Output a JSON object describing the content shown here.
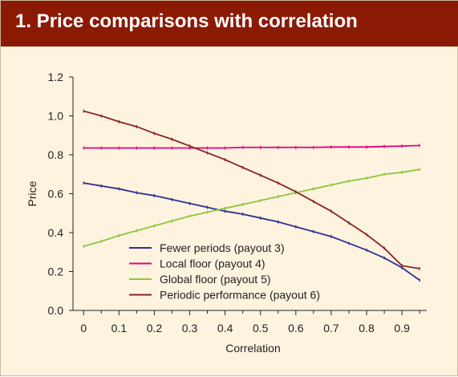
{
  "title": "1. Price comparisons with correlation",
  "colors": {
    "title_bar": "#8b1a05",
    "background": "#fdf3df"
  },
  "chart_data": {
    "type": "line",
    "xlabel": "Correlation",
    "ylabel": "Price",
    "xlim": [
      -0.03,
      0.97
    ],
    "ylim": [
      0,
      1.2
    ],
    "x_ticks": [
      0,
      0.1,
      0.2,
      0.3,
      0.4,
      0.5,
      0.6,
      0.7,
      0.8,
      0.9
    ],
    "x_tick_labels": [
      "0",
      "0.1",
      "0.2",
      "0.3",
      "0.4",
      "0.5",
      "0.6",
      "0.7",
      "0.8",
      "0.9"
    ],
    "y_ticks": [
      0,
      0.2,
      0.4,
      0.6,
      0.8,
      1.0,
      1.2
    ],
    "y_tick_labels": [
      "0.0",
      "0.2",
      "0.4",
      "0.6",
      "0.8",
      "1.0",
      "1.2"
    ],
    "grid": false,
    "legend_position": "bottom-center",
    "x": [
      0,
      0.05,
      0.1,
      0.15,
      0.2,
      0.25,
      0.3,
      0.35,
      0.4,
      0.45,
      0.5,
      0.55,
      0.6,
      0.65,
      0.7,
      0.75,
      0.8,
      0.85,
      0.9,
      0.95
    ],
    "series": [
      {
        "name": "Fewer periods (payout 3)",
        "color": "#2e3192",
        "values": [
          0.655,
          0.64,
          0.625,
          0.605,
          0.59,
          0.57,
          0.55,
          0.53,
          0.51,
          0.495,
          0.475,
          0.455,
          0.43,
          0.405,
          0.38,
          0.345,
          0.31,
          0.27,
          0.22,
          0.155
        ]
      },
      {
        "name": "Local floor (payout 4)",
        "color": "#e6007e",
        "values": [
          0.835,
          0.835,
          0.835,
          0.835,
          0.835,
          0.835,
          0.835,
          0.835,
          0.835,
          0.838,
          0.838,
          0.838,
          0.838,
          0.838,
          0.84,
          0.84,
          0.84,
          0.843,
          0.845,
          0.848
        ]
      },
      {
        "name": "Global floor (payout 5)",
        "color": "#8dc63f",
        "values": [
          0.33,
          0.355,
          0.385,
          0.41,
          0.435,
          0.46,
          0.485,
          0.505,
          0.525,
          0.545,
          0.565,
          0.585,
          0.605,
          0.625,
          0.645,
          0.665,
          0.68,
          0.7,
          0.71,
          0.725
        ]
      },
      {
        "name": "Periodic performance (payout 6)",
        "color": "#8b2323",
        "values": [
          1.025,
          1.0,
          0.97,
          0.945,
          0.91,
          0.88,
          0.845,
          0.81,
          0.775,
          0.735,
          0.695,
          0.655,
          0.61,
          0.56,
          0.51,
          0.45,
          0.39,
          0.32,
          0.23,
          0.215
        ]
      }
    ]
  }
}
